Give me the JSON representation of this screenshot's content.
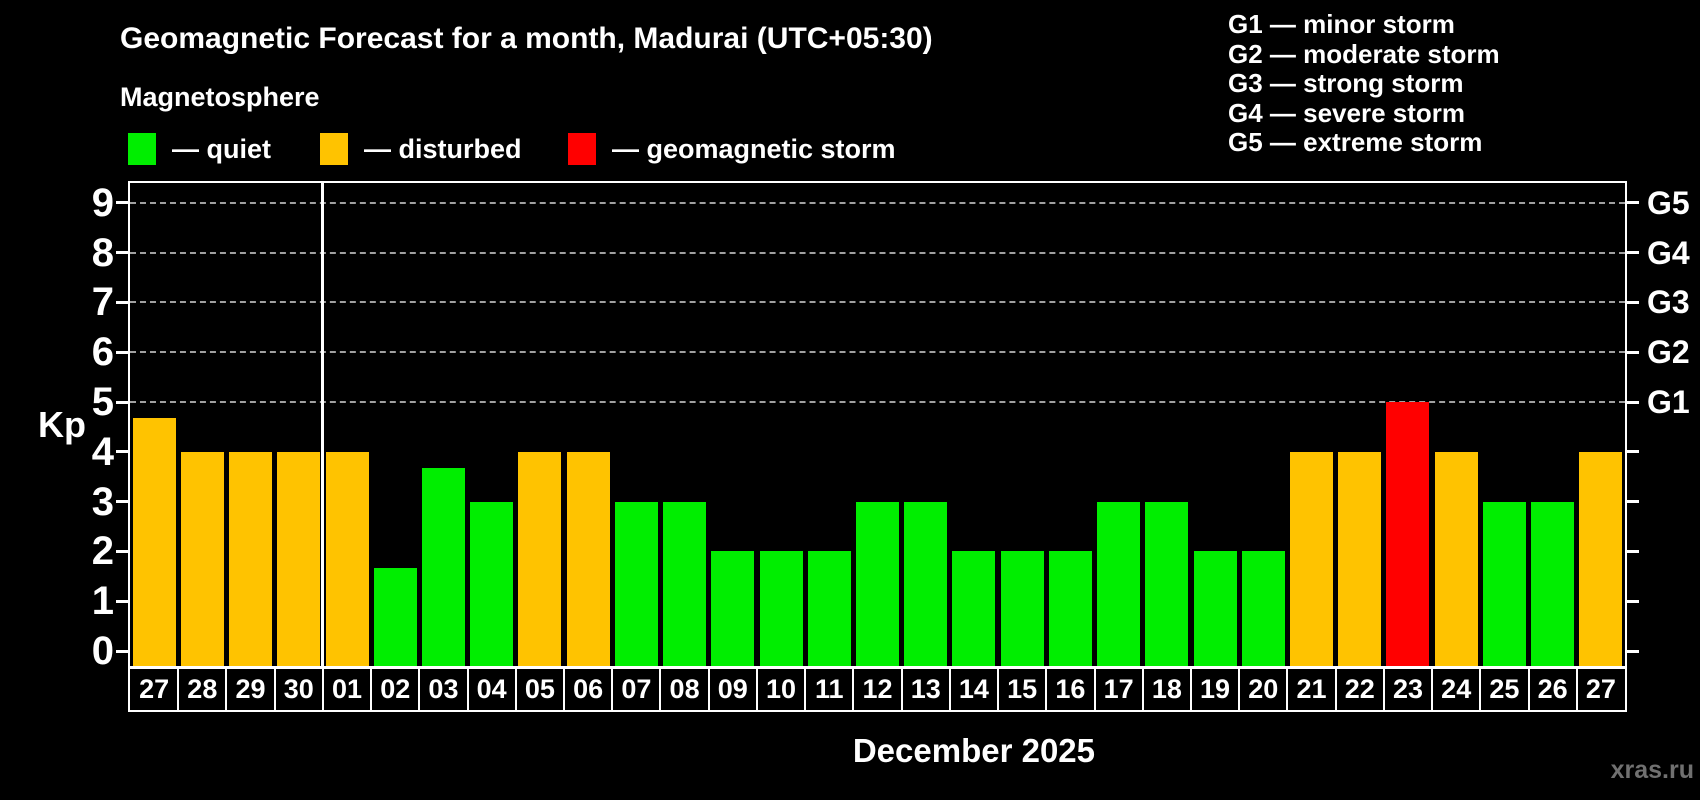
{
  "header": {
    "title": "Geomagnetic Forecast for a month, Madurai (UTC+05:30)",
    "subtitle": "Magnetosphere"
  },
  "legend": {
    "quiet": "— quiet",
    "disturbed": "— disturbed",
    "storm": "— geomagnetic storm"
  },
  "g_legend": {
    "lines": [
      "G1 — minor storm",
      "G2 — moderate storm",
      "G3 — strong storm",
      "G4 — severe storm",
      "G5 — extreme storm"
    ]
  },
  "y_axis": {
    "label": "Kp",
    "ticks": [
      0,
      1,
      2,
      3,
      4,
      5,
      6,
      7,
      8,
      9
    ]
  },
  "x_axis": {
    "month_label": "December 2025"
  },
  "watermark": "xras.ru",
  "colors": {
    "background": "#000000",
    "quiet": "#00ee00",
    "disturbed": "#ffc300",
    "storm": "#ff0000",
    "axis": "#ffffff",
    "grid": "#a0a0a0",
    "watermark": "#707070"
  },
  "chart_data": {
    "type": "bar",
    "title": "Geomagnetic Forecast for a month, Madurai (UTC+05:30)",
    "xlabel": "December 2025",
    "ylabel": "Kp",
    "ylim": [
      -0.33,
      9.33
    ],
    "grid": "dashed horizontal lines at Kp 5-9 only",
    "legend_position": "top-left swatches; G-scale text top-right",
    "categories": [
      "27",
      "28",
      "29",
      "30",
      "01",
      "02",
      "03",
      "04",
      "05",
      "06",
      "07",
      "08",
      "09",
      "10",
      "11",
      "12",
      "13",
      "14",
      "15",
      "16",
      "17",
      "18",
      "19",
      "20",
      "21",
      "22",
      "23",
      "24",
      "25",
      "26",
      "27"
    ],
    "values": [
      4.67,
      4,
      4,
      4,
      4,
      1.67,
      3.67,
      3,
      4,
      4,
      3,
      3,
      2,
      2,
      2,
      3,
      3,
      2,
      2,
      2,
      3,
      3,
      2,
      2,
      4,
      4,
      5,
      4,
      3,
      3,
      4
    ],
    "status": [
      "disturbed",
      "disturbed",
      "disturbed",
      "disturbed",
      "disturbed",
      "quiet",
      "quiet",
      "quiet",
      "disturbed",
      "disturbed",
      "quiet",
      "quiet",
      "quiet",
      "quiet",
      "quiet",
      "quiet",
      "quiet",
      "quiet",
      "quiet",
      "quiet",
      "quiet",
      "quiet",
      "quiet",
      "quiet",
      "disturbed",
      "disturbed",
      "storm",
      "disturbed",
      "quiet",
      "quiet",
      "disturbed"
    ],
    "prev_month_day_count": 4,
    "y_ticks": [
      0,
      1,
      2,
      3,
      4,
      5,
      6,
      7,
      8,
      9
    ],
    "g_levels": [
      {
        "kp": 5,
        "label": "G1"
      },
      {
        "kp": 6,
        "label": "G2"
      },
      {
        "kp": 7,
        "label": "G3"
      },
      {
        "kp": 8,
        "label": "G4"
      },
      {
        "kp": 9,
        "label": "G5"
      }
    ]
  }
}
